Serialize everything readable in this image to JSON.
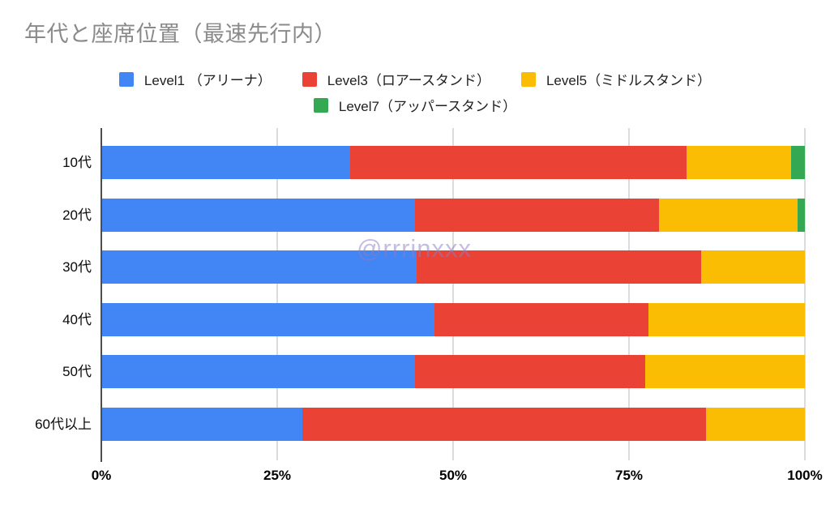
{
  "title": "年代と座席位置（最速先行内）",
  "watermark": "@rrrinxxx",
  "chart_data": {
    "type": "bar",
    "orientation": "horizontal",
    "stacked": true,
    "percent_stacked": true,
    "title": "年代と座席位置（最速先行内）",
    "categories": [
      "10代",
      "20代",
      "30代",
      "40代",
      "50代",
      "60代以上"
    ],
    "series": [
      {
        "name": "Level1 （アリーナ）",
        "color": "#4285F4",
        "values": [
          35.4,
          44.6,
          44.8,
          47.3,
          44.6,
          28.6
        ]
      },
      {
        "name": "Level3（ロアースタンド）",
        "color": "#EA4335",
        "values": [
          47.8,
          34.7,
          40.4,
          30.5,
          32.7,
          57.3
        ]
      },
      {
        "name": "Level5（ミドルスタンド）",
        "color": "#FBBC04",
        "values": [
          14.8,
          19.7,
          14.8,
          22.2,
          22.7,
          14.1
        ]
      },
      {
        "name": "Level7（アッパースタンド）",
        "color": "#34A853",
        "values": [
          2.0,
          1.0,
          0.0,
          0.0,
          0.0,
          0.0
        ]
      }
    ],
    "x_axis": {
      "tick_labels": [
        "0%",
        "25%",
        "50%",
        "75%",
        "100%"
      ],
      "tick_values": [
        0,
        25,
        50,
        75,
        100
      ],
      "range": [
        0,
        100
      ],
      "grid": true
    },
    "y_axis": {
      "label": ""
    },
    "legend_position": "top",
    "legend_rows": [
      [
        0,
        1,
        2
      ],
      [
        3
      ]
    ]
  }
}
